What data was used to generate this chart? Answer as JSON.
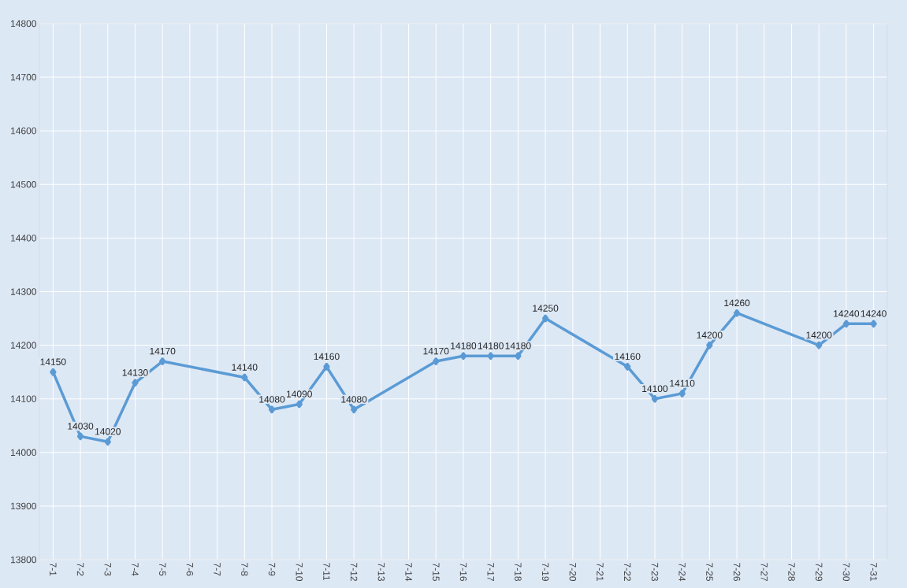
{
  "chart_data": {
    "type": "line",
    "categories": [
      "7-1",
      "7-2",
      "7-3",
      "7-4",
      "7-5",
      "7-6",
      "7-7",
      "7-8",
      "7-9",
      "7-10",
      "7-11",
      "7-12",
      "7-13",
      "7-14",
      "7-15",
      "7-16",
      "7-17",
      "7-18",
      "7-19",
      "7-20",
      "7-21",
      "7-22",
      "7-23",
      "7-24",
      "7-25",
      "7-26",
      "7-27",
      "7-28",
      "7-29",
      "7-30",
      "7-31"
    ],
    "values": [
      14150,
      14030,
      14020,
      14130,
      14170,
      null,
      null,
      14140,
      14080,
      14090,
      14160,
      14080,
      null,
      null,
      14170,
      14180,
      14180,
      14180,
      14250,
      null,
      null,
      14160,
      14100,
      14110,
      14200,
      14260,
      null,
      null,
      14200,
      14240,
      14240
    ],
    "color": "#5b9bd5",
    "ylim": [
      13800,
      14800
    ],
    "yticks": [
      13800,
      13900,
      14000,
      14100,
      14200,
      14300,
      14400,
      14500,
      14600,
      14700,
      14800
    ],
    "grid": true,
    "marker": "diamond",
    "line_style": "solid",
    "data_labels": true
  }
}
